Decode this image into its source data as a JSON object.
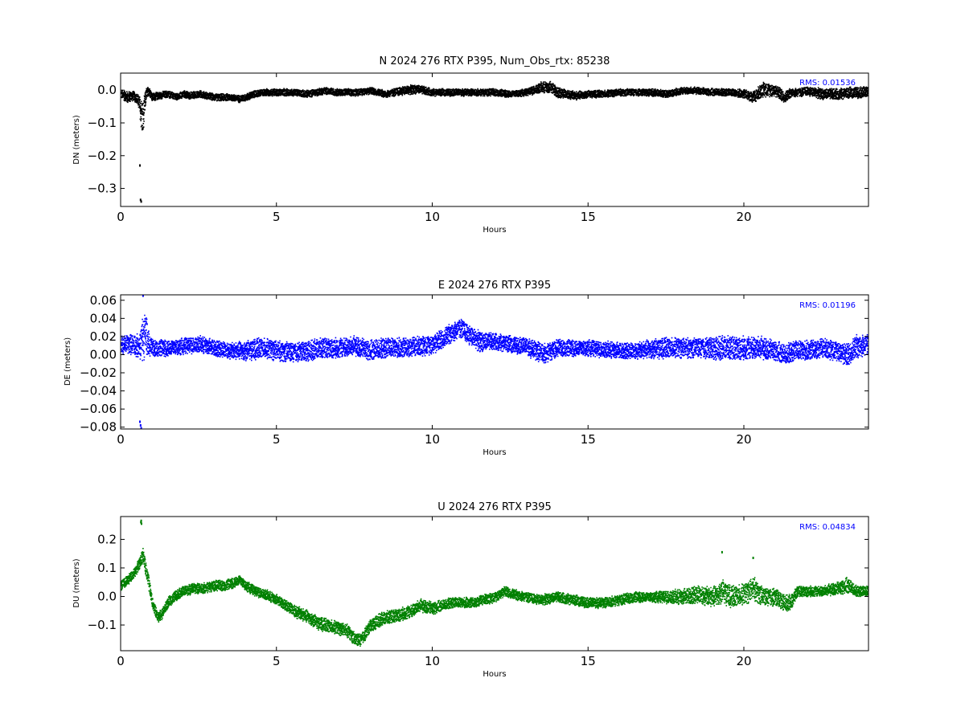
{
  "chart_data": [
    {
      "type": "scatter",
      "title": "N 2024 276 RTX  P395, Num_Obs_rtx: 85238",
      "xlabel": "Hours",
      "ylabel": "DN (meters)",
      "xlim": [
        0,
        24
      ],
      "ylim": [
        -0.355,
        0.052
      ],
      "xticks": [
        0,
        5,
        10,
        15,
        20
      ],
      "xtick_labels": [
        "0",
        "5",
        "10",
        "15",
        "20"
      ],
      "yticks": [
        0.0,
        -0.1,
        -0.2,
        -0.3
      ],
      "ytick_labels": [
        "0.0",
        "−0.1",
        "−0.2",
        "−0.3"
      ],
      "color": "#000000",
      "rms_label": "RMS:  0.01536",
      "rms_color": "#0000ff",
      "series": [
        {
          "x": [
            0.0,
            0.2,
            0.4,
            0.55,
            0.65,
            0.7,
            0.75,
            0.8,
            0.9,
            1.0,
            1.2,
            1.5,
            1.8,
            2.0,
            2.2,
            2.5,
            3.0,
            3.5,
            3.8,
            4.0,
            4.3,
            4.6,
            5.0,
            5.5,
            6.0,
            6.5,
            7.0,
            7.5,
            8.0,
            8.5,
            9.0,
            9.5,
            10.0,
            10.5,
            11.0,
            11.5,
            12.0,
            12.5,
            13.0,
            13.5,
            13.8,
            14.0,
            14.3,
            14.6,
            15.0,
            15.5,
            16.0,
            16.5,
            17.0,
            17.5,
            18.0,
            18.5,
            19.0,
            19.5,
            20.0,
            20.3,
            20.6,
            21.0,
            21.3,
            21.5,
            21.8,
            22.0,
            22.5,
            23.0,
            23.5,
            24.0
          ],
          "y": [
            -0.01,
            -0.02,
            -0.015,
            -0.03,
            -0.07,
            -0.09,
            -0.05,
            -0.01,
            0.0,
            -0.02,
            -0.015,
            -0.01,
            -0.02,
            -0.01,
            -0.015,
            -0.01,
            -0.02,
            -0.02,
            -0.025,
            -0.02,
            -0.01,
            -0.005,
            -0.005,
            -0.005,
            -0.01,
            0.0,
            -0.005,
            -0.005,
            0.0,
            -0.01,
            0.0,
            0.005,
            -0.005,
            -0.005,
            -0.005,
            -0.005,
            -0.005,
            -0.01,
            -0.005,
            0.01,
            0.01,
            -0.005,
            -0.01,
            -0.015,
            -0.01,
            -0.01,
            -0.005,
            -0.005,
            -0.005,
            -0.01,
            0.0,
            0.0,
            -0.005,
            -0.005,
            -0.01,
            -0.02,
            0.005,
            0.0,
            -0.02,
            -0.005,
            -0.005,
            0.0,
            -0.01,
            -0.01,
            -0.005,
            -0.005
          ],
          "spread": [
            0.015,
            0.02,
            0.015,
            0.02,
            0.06,
            0.06,
            0.04,
            0.02,
            0.015,
            0.015,
            0.012,
            0.012,
            0.012,
            0.012,
            0.012,
            0.012,
            0.012,
            0.012,
            0.012,
            0.012,
            0.012,
            0.012,
            0.012,
            0.012,
            0.012,
            0.012,
            0.012,
            0.012,
            0.012,
            0.012,
            0.015,
            0.015,
            0.012,
            0.012,
            0.012,
            0.012,
            0.012,
            0.012,
            0.012,
            0.018,
            0.02,
            0.018,
            0.015,
            0.015,
            0.012,
            0.012,
            0.012,
            0.012,
            0.012,
            0.012,
            0.012,
            0.012,
            0.012,
            0.012,
            0.015,
            0.02,
            0.025,
            0.02,
            0.02,
            0.015,
            0.015,
            0.015,
            0.018,
            0.018,
            0.018,
            0.02
          ]
        }
      ],
      "outliers": {
        "x": [
          0.62,
          0.64,
          0.66
        ],
        "y": [
          -0.23,
          -0.335,
          -0.34
        ]
      }
    },
    {
      "type": "scatter",
      "title": "E 2024 276 RTX  P395",
      "xlabel": "Hours",
      "ylabel": "DE (meters)",
      "xlim": [
        0,
        24
      ],
      "ylim": [
        -0.082,
        0.066
      ],
      "xticks": [
        0,
        5,
        10,
        15,
        20
      ],
      "xtick_labels": [
        "0",
        "5",
        "10",
        "15",
        "20"
      ],
      "yticks": [
        0.06,
        0.04,
        0.02,
        0.0,
        -0.02,
        -0.04,
        -0.06,
        -0.08
      ],
      "ytick_labels": [
        "0.06",
        "0.04",
        "0.02",
        "0.00",
        "−0.02",
        "−0.04",
        "−0.06",
        "−0.08"
      ],
      "color": "#0000ff",
      "rms_label": "RMS:  0.01196",
      "rms_color": "#0000ff",
      "series": [
        {
          "x": [
            0.0,
            0.3,
            0.6,
            0.7,
            0.8,
            0.9,
            1.0,
            1.5,
            2.0,
            2.5,
            3.0,
            3.5,
            4.0,
            4.5,
            5.0,
            5.5,
            6.0,
            6.5,
            7.0,
            7.5,
            8.0,
            8.5,
            9.0,
            9.5,
            10.0,
            10.3,
            10.6,
            10.9,
            11.2,
            11.5,
            12.0,
            12.5,
            13.0,
            13.3,
            13.6,
            14.0,
            14.5,
            15.0,
            15.5,
            16.0,
            16.5,
            17.0,
            17.5,
            18.0,
            18.5,
            19.0,
            19.5,
            20.0,
            20.5,
            21.0,
            21.3,
            21.6,
            22.0,
            22.5,
            23.0,
            23.3,
            23.6,
            24.0
          ],
          "y": [
            0.012,
            0.012,
            0.01,
            0.02,
            0.025,
            0.01,
            0.008,
            0.008,
            0.01,
            0.012,
            0.008,
            0.005,
            0.005,
            0.008,
            0.005,
            0.003,
            0.005,
            0.008,
            0.008,
            0.01,
            0.005,
            0.008,
            0.008,
            0.01,
            0.012,
            0.018,
            0.025,
            0.03,
            0.022,
            0.015,
            0.015,
            0.012,
            0.01,
            0.005,
            0.002,
            0.008,
            0.008,
            0.008,
            0.006,
            0.005,
            0.005,
            0.007,
            0.008,
            0.008,
            0.008,
            0.008,
            0.008,
            0.008,
            0.008,
            0.005,
            0.0,
            0.005,
            0.005,
            0.008,
            0.005,
            0.0,
            0.01,
            0.012
          ],
          "spread": [
            0.01,
            0.012,
            0.015,
            0.03,
            0.025,
            0.012,
            0.01,
            0.01,
            0.01,
            0.01,
            0.01,
            0.01,
            0.012,
            0.012,
            0.012,
            0.012,
            0.012,
            0.012,
            0.012,
            0.012,
            0.012,
            0.012,
            0.012,
            0.012,
            0.012,
            0.012,
            0.012,
            0.012,
            0.012,
            0.012,
            0.01,
            0.01,
            0.01,
            0.012,
            0.012,
            0.01,
            0.01,
            0.01,
            0.01,
            0.01,
            0.01,
            0.012,
            0.012,
            0.012,
            0.012,
            0.014,
            0.014,
            0.014,
            0.014,
            0.012,
            0.012,
            0.012,
            0.012,
            0.012,
            0.012,
            0.014,
            0.014,
            0.014
          ]
        }
      ],
      "outliers": {
        "x": [
          0.62,
          0.64,
          0.66,
          0.72
        ],
        "y": [
          -0.074,
          -0.078,
          -0.081,
          0.065
        ]
      }
    },
    {
      "type": "scatter",
      "title": "U 2024 276 RTX  P395",
      "xlabel": "Hours",
      "ylabel": "DU (meters)",
      "xlim": [
        0,
        24
      ],
      "ylim": [
        -0.19,
        0.28
      ],
      "xticks": [
        0,
        5,
        10,
        15,
        20
      ],
      "xtick_labels": [
        "0",
        "5",
        "10",
        "15",
        "20"
      ],
      "yticks": [
        0.2,
        0.1,
        0.0,
        -0.1
      ],
      "ytick_labels": [
        "0.2",
        "0.1",
        "0.0",
        "−0.1"
      ],
      "color": "#008000",
      "rms_label": "RMS:  0.04834",
      "rms_color": "#0000ff",
      "series": [
        {
          "x": [
            0.0,
            0.2,
            0.4,
            0.6,
            0.7,
            0.8,
            0.9,
            1.0,
            1.1,
            1.2,
            1.3,
            1.5,
            1.8,
            2.0,
            2.3,
            2.6,
            3.0,
            3.3,
            3.6,
            3.8,
            4.0,
            4.3,
            4.6,
            5.0,
            5.3,
            5.6,
            6.0,
            6.3,
            6.6,
            7.0,
            7.3,
            7.5,
            7.7,
            8.0,
            8.3,
            8.6,
            9.0,
            9.3,
            9.6,
            10.0,
            10.3,
            10.6,
            11.0,
            11.3,
            11.6,
            12.0,
            12.3,
            12.6,
            13.0,
            13.5,
            14.0,
            14.5,
            15.0,
            15.5,
            16.0,
            16.5,
            17.0,
            17.5,
            18.0,
            18.5,
            19.0,
            19.3,
            19.6,
            20.0,
            20.3,
            20.6,
            21.0,
            21.3,
            21.5,
            21.7,
            22.0,
            22.5,
            23.0,
            23.3,
            23.6,
            24.0
          ],
          "y": [
            0.04,
            0.06,
            0.08,
            0.12,
            0.15,
            0.09,
            0.04,
            -0.02,
            -0.05,
            -0.07,
            -0.06,
            -0.02,
            0.01,
            0.02,
            0.03,
            0.03,
            0.04,
            0.04,
            0.05,
            0.06,
            0.04,
            0.02,
            0.01,
            -0.01,
            -0.03,
            -0.05,
            -0.07,
            -0.09,
            -0.1,
            -0.11,
            -0.12,
            -0.15,
            -0.15,
            -0.1,
            -0.08,
            -0.07,
            -0.06,
            -0.05,
            -0.03,
            -0.04,
            -0.03,
            -0.02,
            -0.02,
            -0.02,
            -0.01,
            0.0,
            0.02,
            0.01,
            0.0,
            -0.01,
            0.0,
            -0.01,
            -0.02,
            -0.02,
            -0.01,
            0.0,
            0.0,
            0.0,
            0.0,
            0.01,
            0.0,
            0.02,
            0.0,
            0.01,
            0.03,
            0.0,
            0.0,
            -0.02,
            -0.02,
            0.02,
            0.02,
            0.02,
            0.03,
            0.04,
            0.02,
            0.02
          ],
          "spread": [
            0.02,
            0.02,
            0.02,
            0.02,
            0.03,
            0.03,
            0.03,
            0.02,
            0.02,
            0.02,
            0.02,
            0.02,
            0.02,
            0.02,
            0.02,
            0.02,
            0.02,
            0.02,
            0.02,
            0.02,
            0.02,
            0.02,
            0.02,
            0.02,
            0.02,
            0.025,
            0.025,
            0.025,
            0.025,
            0.025,
            0.025,
            0.025,
            0.025,
            0.025,
            0.025,
            0.025,
            0.025,
            0.025,
            0.025,
            0.025,
            0.02,
            0.02,
            0.02,
            0.02,
            0.02,
            0.02,
            0.02,
            0.02,
            0.02,
            0.02,
            0.02,
            0.02,
            0.02,
            0.02,
            0.02,
            0.02,
            0.02,
            0.025,
            0.03,
            0.035,
            0.04,
            0.045,
            0.04,
            0.04,
            0.045,
            0.035,
            0.035,
            0.03,
            0.03,
            0.02,
            0.02,
            0.02,
            0.025,
            0.03,
            0.02,
            0.02
          ]
        }
      ],
      "outliers": {
        "x": [
          0.65,
          0.66,
          0.67,
          19.3,
          20.3
        ],
        "y": [
          0.26,
          0.265,
          0.255,
          0.155,
          0.135
        ]
      }
    }
  ]
}
